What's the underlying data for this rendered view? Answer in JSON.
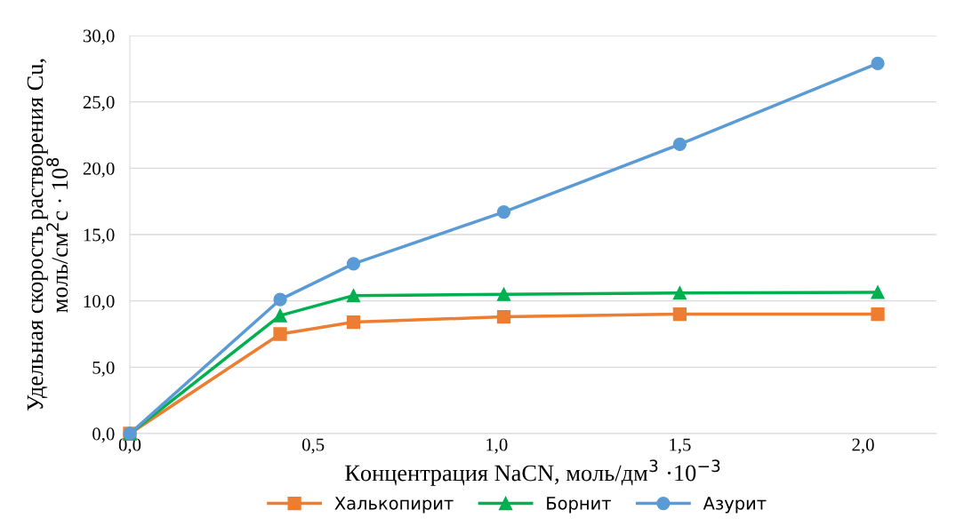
{
  "chart_data": {
    "type": "line",
    "xlabel": "Концентрация NaCN, моль/дм$^{3}$ ·10$^{−3}$",
    "ylabel": "Удельная скорость растворения Cu,\nмоль/см$^{2}$с · 10$^{8}$",
    "x": [
      0,
      0.41,
      0.61,
      1.02,
      1.5,
      2.04
    ],
    "series": [
      {
        "name": "Халькопирит",
        "color": "#ed7d31",
        "marker": "square",
        "values": [
          0,
          7.5,
          8.4,
          8.8,
          9.0,
          9.0
        ]
      },
      {
        "name": "Борнит",
        "color": "#00b050",
        "marker": "triangle",
        "values": [
          0,
          8.9,
          10.4,
          10.5,
          10.6,
          10.65
        ]
      },
      {
        "name": "Азурит",
        "color": "#5b9bd5",
        "marker": "circle",
        "values": [
          0,
          10.1,
          12.8,
          16.7,
          21.8,
          27.9
        ]
      }
    ],
    "xlim": [
      0,
      2.2
    ],
    "xticks": [
      {
        "value": 0,
        "label": "0,0"
      },
      {
        "value": 0.5,
        "label": "0,5"
      },
      {
        "value": 1.0,
        "label": "1,0"
      },
      {
        "value": 1.5,
        "label": "1,5"
      },
      {
        "value": 2.0,
        "label": "2,0"
      }
    ],
    "ylim": [
      0,
      30
    ],
    "yticks": [
      {
        "value": 0,
        "label": "0,0"
      },
      {
        "value": 5,
        "label": "5,0"
      },
      {
        "value": 10,
        "label": "10,0"
      },
      {
        "value": 15,
        "label": "15,0"
      },
      {
        "value": 20,
        "label": "20,0"
      },
      {
        "value": 25,
        "label": "25,0"
      },
      {
        "value": 30,
        "label": "30,0"
      }
    ],
    "grid": "y",
    "legend": "bottom"
  }
}
